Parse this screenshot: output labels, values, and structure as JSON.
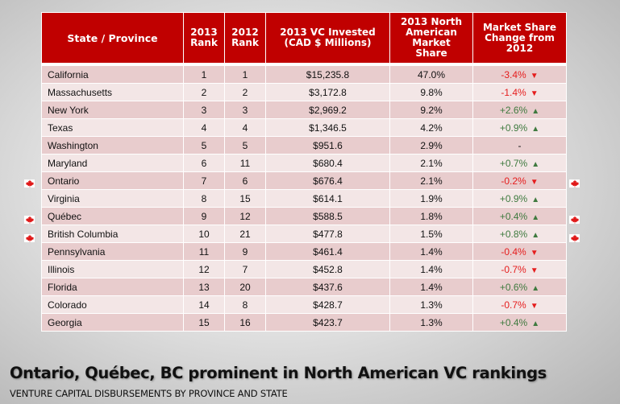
{
  "colors": {
    "header_bg": "#c00000",
    "row_odd": "#e8cccd",
    "row_even": "#f3e6e6",
    "negative": "#e51d1d",
    "positive": "#3f7a3f"
  },
  "table": {
    "headers": [
      "State / Province",
      "2013 Rank",
      "2012 Rank",
      "2013 VC Invested (CAD $ Millions)",
      "2013 North American Market Share",
      "Market Share Change from 2012"
    ],
    "header_lines": [
      [
        "State / Province"
      ],
      [
        "2013",
        "Rank"
      ],
      [
        "2012",
        "Rank"
      ],
      [
        "2013 VC Invested",
        "(CAD $ Millions)"
      ],
      [
        "2013 North",
        "American",
        "Market",
        "Share"
      ],
      [
        "Market Share",
        "Change from",
        "2012"
      ]
    ],
    "rows": [
      {
        "name": "California",
        "rank_2013": "1",
        "rank_2012": "1",
        "invested": "$15,235.8",
        "share": "47.0%",
        "change": "-3.4%",
        "direction": "down",
        "canadian": false
      },
      {
        "name": "Massachusetts",
        "rank_2013": "2",
        "rank_2012": "2",
        "invested": "$3,172.8",
        "share": "9.8%",
        "change": "-1.4%",
        "direction": "down",
        "canadian": false
      },
      {
        "name": "New York",
        "rank_2013": "3",
        "rank_2012": "3",
        "invested": "$2,969.2",
        "share": "9.2%",
        "change": "+2.6%",
        "direction": "up",
        "canadian": false
      },
      {
        "name": "Texas",
        "rank_2013": "4",
        "rank_2012": "4",
        "invested": "$1,346.5",
        "share": "4.2%",
        "change": "+0.9%",
        "direction": "up",
        "canadian": false
      },
      {
        "name": "Washington",
        "rank_2013": "5",
        "rank_2012": "5",
        "invested": "$951.6",
        "share": "2.9%",
        "change": "-",
        "direction": "none",
        "canadian": false
      },
      {
        "name": "Maryland",
        "rank_2013": "6",
        "rank_2012": "11",
        "invested": "$680.4",
        "share": "2.1%",
        "change": "+0.7%",
        "direction": "up",
        "canadian": false
      },
      {
        "name": "Ontario",
        "rank_2013": "7",
        "rank_2012": "6",
        "invested": "$676.4",
        "share": "2.1%",
        "change": "-0.2%",
        "direction": "down",
        "canadian": true
      },
      {
        "name": "Virginia",
        "rank_2013": "8",
        "rank_2012": "15",
        "invested": "$614.1",
        "share": "1.9%",
        "change": "+0.9%",
        "direction": "up",
        "canadian": false
      },
      {
        "name": "Québec",
        "rank_2013": "9",
        "rank_2012": "12",
        "invested": "$588.5",
        "share": "1.8%",
        "change": "+0.4%",
        "direction": "up",
        "canadian": true
      },
      {
        "name": "British Columbia",
        "rank_2013": "10",
        "rank_2012": "21",
        "invested": "$477.8",
        "share": "1.5%",
        "change": "+0.8%",
        "direction": "up",
        "canadian": true
      },
      {
        "name": "Pennsylvania",
        "rank_2013": "11",
        "rank_2012": "9",
        "invested": "$461.4",
        "share": "1.4%",
        "change": "-0.4%",
        "direction": "down",
        "canadian": false
      },
      {
        "name": "Illinois",
        "rank_2013": "12",
        "rank_2012": "7",
        "invested": "$452.8",
        "share": "1.4%",
        "change": "-0.7%",
        "direction": "down",
        "canadian": false
      },
      {
        "name": "Florida",
        "rank_2013": "13",
        "rank_2012": "20",
        "invested": "$437.6",
        "share": "1.4%",
        "change": "+0.6%",
        "direction": "up",
        "canadian": false
      },
      {
        "name": "Colorado",
        "rank_2013": "14",
        "rank_2012": "8",
        "invested": "$428.7",
        "share": "1.3%",
        "change": "-0.7%",
        "direction": "down",
        "canadian": false
      },
      {
        "name": "Georgia",
        "rank_2013": "15",
        "rank_2012": "16",
        "invested": "$423.7",
        "share": "1.3%",
        "change": "+0.4%",
        "direction": "up",
        "canadian": false
      }
    ]
  },
  "icons": {
    "up": "▲",
    "down": "▼",
    "flag": "canada-flag-icon"
  },
  "title": "Ontario, Québec, BC prominent in North American VC rankings",
  "subtitle": "VENTURE CAPITAL DISBURSEMENTS BY PROVINCE AND STATE"
}
